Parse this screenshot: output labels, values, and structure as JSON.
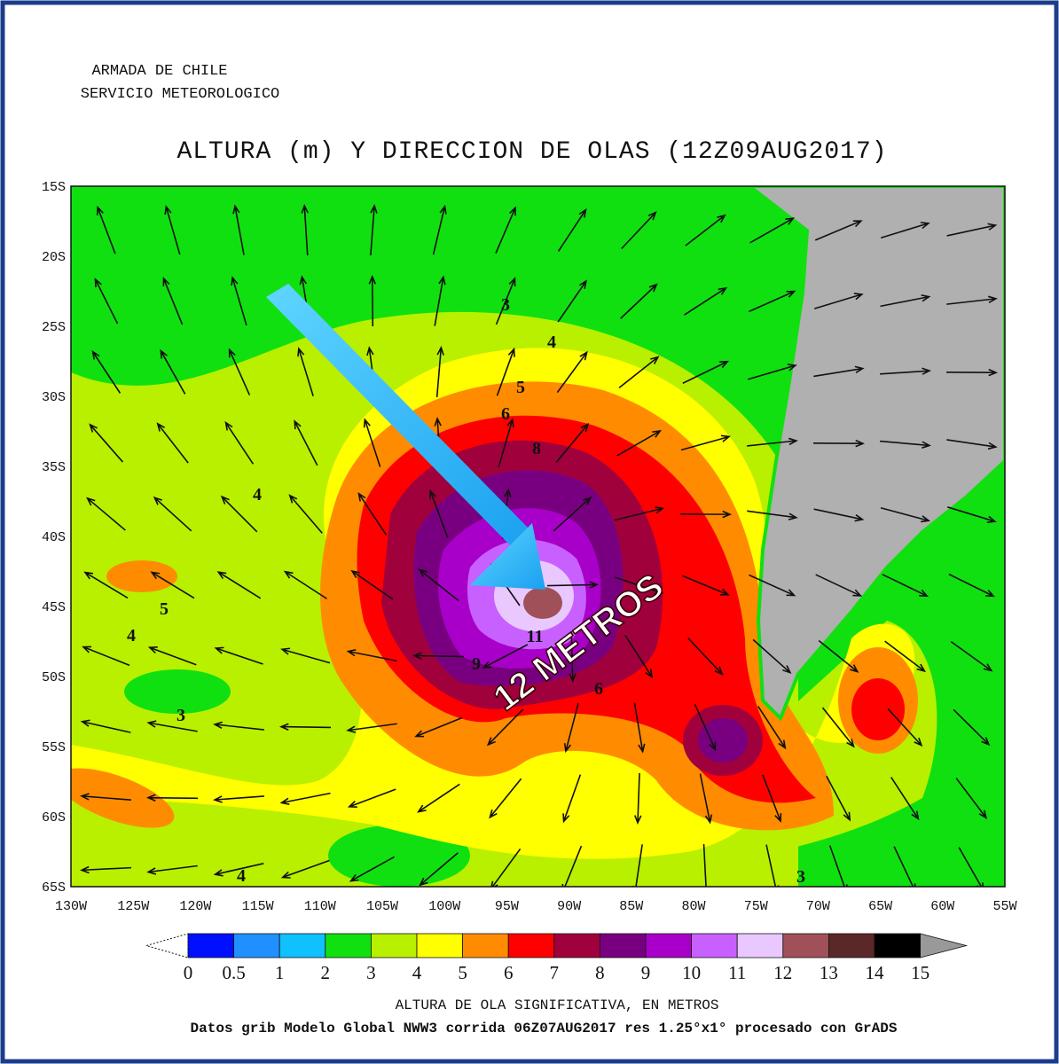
{
  "header": {
    "org": "ARMADA DE CHILE",
    "service": "SERVICIO METEOROLOGICO",
    "title": "ALTURA (m) Y DIRECCION DE OLAS (12Z09AUG2017)"
  },
  "map": {
    "lat_labels": [
      "15S",
      "20S",
      "25S",
      "30S",
      "35S",
      "40S",
      "45S",
      "50S",
      "55S",
      "60S",
      "65S"
    ],
    "lon_labels": [
      "130W",
      "125W",
      "120W",
      "115W",
      "110W",
      "105W",
      "100W",
      "95W",
      "90W",
      "85W",
      "80W",
      "75W",
      "70W",
      "65W",
      "60W",
      "55W"
    ],
    "contour_labels": [
      "3",
      "4",
      "5",
      "6",
      "8",
      "9",
      "11",
      "6",
      "4",
      "5",
      "4",
      "3",
      "4",
      "3"
    ],
    "annotation": "12 METROS"
  },
  "colorbar": {
    "ticks": [
      "0",
      "0.5",
      "1",
      "2",
      "3",
      "4",
      "5",
      "6",
      "7",
      "8",
      "9",
      "10",
      "11",
      "12",
      "13",
      "14",
      "15"
    ],
    "colors": [
      "#0010ff",
      "#2090ff",
      "#10c0ff",
      "#10e010",
      "#b8f000",
      "#ffff00",
      "#ff8c00",
      "#ff0000",
      "#a0003c",
      "#780080",
      "#a800c8",
      "#c860ff",
      "#e8c8ff",
      "#a05058",
      "#5a2828",
      "#000000"
    ],
    "label": "ALTURA DE OLA SIGNIFICATIVA, EN METROS"
  },
  "footer": "Datos grib Modelo Global NWW3 corrida 06Z07AUG2017 res 1.25°x1° procesado con GrADS"
}
